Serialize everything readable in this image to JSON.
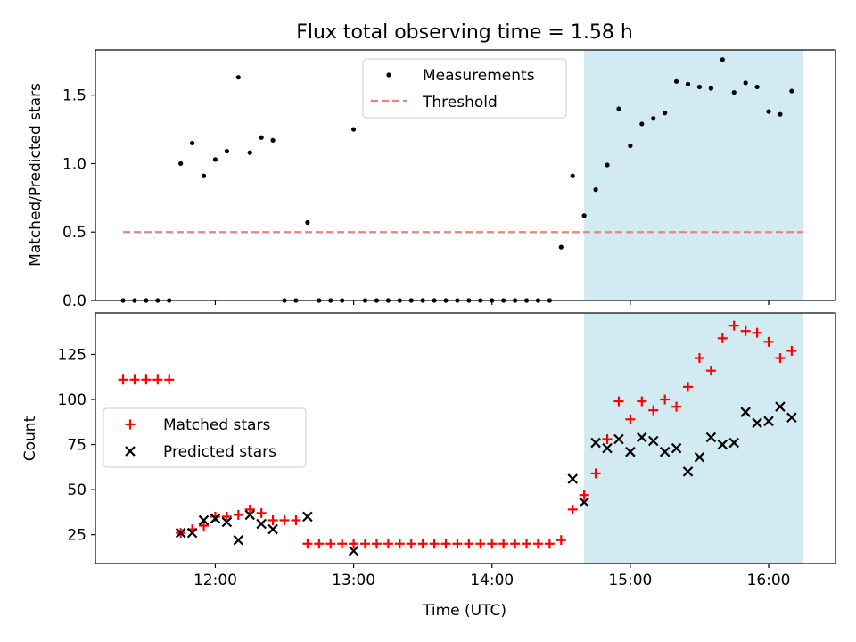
{
  "colors": {
    "measurement": "#000000",
    "threshold": "#f08080",
    "matched": "#ff0000",
    "predicted": "#000000",
    "shade": "#add8e6"
  },
  "chart_data": [
    {
      "type": "scatter",
      "title": "Flux total observing time = 1.58 h",
      "xlabel": "",
      "ylabel": "Matched/Predicted stars",
      "ylim": [
        0,
        1.83
      ],
      "yticks": [
        "0.0",
        "0.5",
        "1.0",
        "1.5"
      ],
      "legend_position": "top-center",
      "shaded_region_utc": [
        "14:40",
        "16:15"
      ],
      "series": [
        {
          "name": "Measurements",
          "x": [
            "11:20",
            "11:25",
            "11:30",
            "11:35",
            "11:40",
            "11:45",
            "11:50",
            "11:55",
            "12:00",
            "12:05",
            "12:10",
            "12:15",
            "12:20",
            "12:25",
            "12:30",
            "12:35",
            "12:40",
            "12:45",
            "12:50",
            "12:55",
            "13:00",
            "13:05",
            "13:10",
            "13:15",
            "13:20",
            "13:25",
            "13:30",
            "13:35",
            "13:40",
            "13:45",
            "13:50",
            "13:55",
            "14:00",
            "14:05",
            "14:10",
            "14:15",
            "14:20",
            "14:25",
            "14:30",
            "14:35",
            "14:40",
            "14:45",
            "14:50",
            "14:55",
            "15:00",
            "15:05",
            "15:10",
            "15:15",
            "15:20",
            "15:25",
            "15:30",
            "15:35",
            "15:40",
            "15:45",
            "15:50",
            "15:55",
            "16:00",
            "16:05",
            "16:10",
            "16:15"
          ],
          "y": [
            0,
            0,
            0,
            0,
            0,
            1.0,
            1.15,
            0.91,
            1.03,
            1.09,
            1.63,
            1.08,
            1.19,
            1.17,
            0,
            0,
            0.57,
            0,
            0,
            0,
            1.25,
            0,
            0,
            0,
            0,
            0,
            0,
            0,
            0,
            0,
            0,
            0,
            0,
            0,
            0,
            0,
            0,
            0,
            0.39,
            0.91,
            0.62,
            0.81,
            0.99,
            1.4,
            1.13,
            1.29,
            1.33,
            1.37,
            1.6,
            1.58,
            1.56,
            1.55,
            1.76,
            1.52,
            1.59,
            1.56,
            1.38,
            1.36,
            1.53,
            null
          ]
        },
        {
          "name": "Threshold",
          "x": [
            "11:20",
            "16:15"
          ],
          "y": [
            0.5,
            0.5
          ]
        }
      ]
    },
    {
      "type": "scatter",
      "title": "",
      "xlabel": "Time (UTC)",
      "ylabel": "Count",
      "ylim": [
        9,
        148
      ],
      "yticks": [
        "25",
        "50",
        "75",
        "100",
        "125"
      ],
      "xticks": [
        "12:00",
        "13:00",
        "14:00",
        "15:00",
        "16:00"
      ],
      "legend_position": "center-left",
      "shaded_region_utc": [
        "14:40",
        "16:15"
      ],
      "series": [
        {
          "name": "Matched stars",
          "x": [
            "11:20",
            "11:25",
            "11:30",
            "11:35",
            "11:40",
            "11:45",
            "11:50",
            "11:55",
            "12:00",
            "12:05",
            "12:10",
            "12:15",
            "12:20",
            "12:25",
            "12:30",
            "12:35",
            "12:40",
            "12:45",
            "12:50",
            "12:55",
            "13:00",
            "13:05",
            "13:10",
            "13:15",
            "13:20",
            "13:25",
            "13:30",
            "13:35",
            "13:40",
            "13:45",
            "13:50",
            "13:55",
            "14:00",
            "14:05",
            "14:10",
            "14:15",
            "14:20",
            "14:25",
            "14:30",
            "14:35",
            "14:40",
            "14:45",
            "14:50",
            "14:55",
            "15:00",
            "15:05",
            "15:10",
            "15:15",
            "15:20",
            "15:25",
            "15:30",
            "15:35",
            "15:40",
            "15:45",
            "15:50",
            "15:55",
            "16:00",
            "16:05",
            "16:10",
            "16:15"
          ],
          "y": [
            111,
            111,
            111,
            111,
            111,
            26,
            28,
            30,
            35,
            35,
            36,
            39,
            37,
            33,
            33,
            33,
            20,
            20,
            20,
            20,
            20,
            20,
            20,
            20,
            20,
            20,
            20,
            20,
            20,
            20,
            20,
            20,
            20,
            20,
            20,
            20,
            20,
            20,
            22,
            39,
            47,
            59,
            78,
            99,
            89,
            99,
            94,
            100,
            96,
            107,
            123,
            116,
            134,
            141,
            138,
            137,
            132,
            123,
            127,
            null
          ]
        },
        {
          "name": "Predicted stars",
          "x": [
            "11:45",
            "11:50",
            "11:55",
            "12:00",
            "12:05",
            "12:10",
            "12:15",
            "12:20",
            "12:25",
            "12:40",
            "13:00",
            "14:35",
            "14:40",
            "14:45",
            "14:50",
            "14:55",
            "15:00",
            "15:05",
            "15:10",
            "15:15",
            "15:20",
            "15:25",
            "15:30",
            "15:35",
            "15:40",
            "15:45",
            "15:50",
            "15:55",
            "16:00",
            "16:05",
            "16:10"
          ],
          "y": [
            26,
            26,
            33,
            34,
            32,
            22,
            36,
            31,
            28,
            35,
            16,
            56,
            43,
            76,
            73,
            78,
            71,
            79,
            77,
            71,
            73,
            60,
            68,
            79,
            75,
            76,
            93,
            87,
            88,
            96,
            90
          ]
        }
      ]
    }
  ]
}
